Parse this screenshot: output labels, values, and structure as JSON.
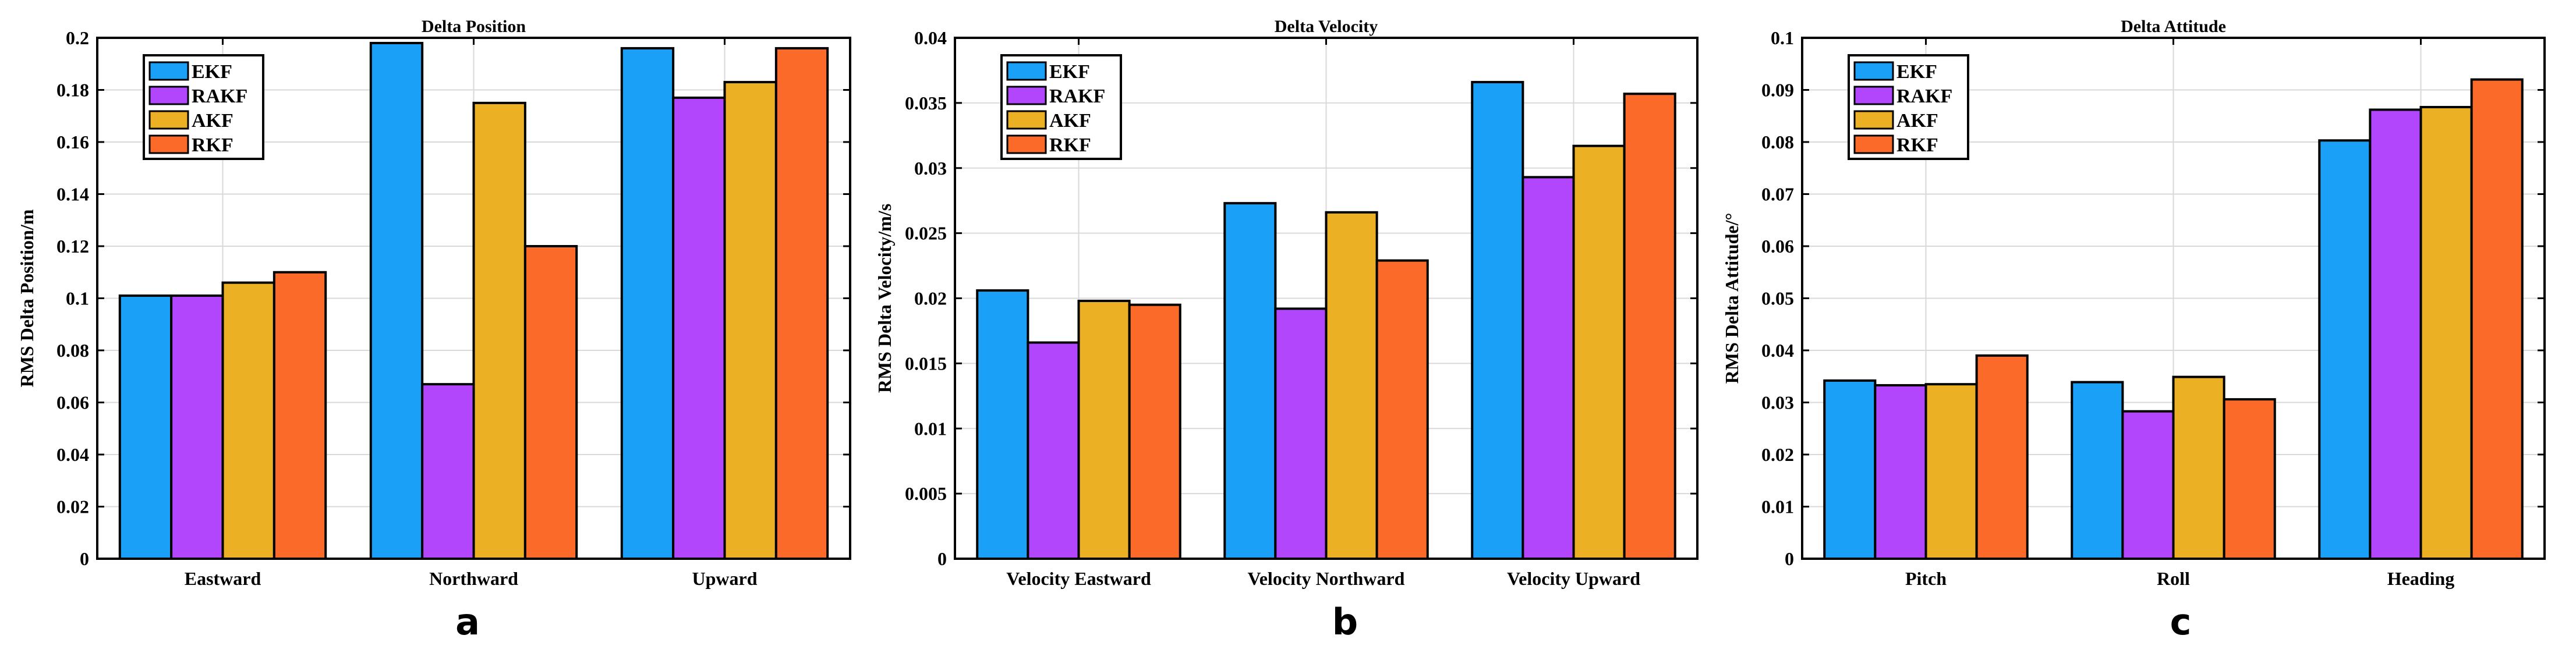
{
  "colors": {
    "EKF": "#1aa0f6",
    "RAKF": "#b146fc",
    "AKF": "#ecb025",
    "RKF": "#fc6a2a",
    "grid": "#d9d9d9",
    "axis": "#000000"
  },
  "chart_data": [
    {
      "type": "bar",
      "title": "Delta Position",
      "ylabel": "RMS Delta Position/m",
      "panel_label": "a",
      "categories": [
        "Eastward",
        "Northward",
        "Upward"
      ],
      "ylim": [
        0,
        0.2
      ],
      "yticks": [
        0,
        0.02,
        0.04,
        0.06,
        0.08,
        0.1,
        0.12,
        0.14,
        0.16,
        0.18,
        0.2
      ],
      "ytick_labels": [
        "0",
        "0.02",
        "0.04",
        "0.06",
        "0.08",
        "0.1",
        "0.12",
        "0.14",
        "0.16",
        "0.18",
        "0.2"
      ],
      "grid": true,
      "legend_position": "top-left",
      "series": [
        {
          "name": "EKF",
          "values": [
            0.101,
            0.198,
            0.196
          ]
        },
        {
          "name": "RAKF",
          "values": [
            0.101,
            0.067,
            0.177
          ]
        },
        {
          "name": "AKF",
          "values": [
            0.106,
            0.175,
            0.183
          ]
        },
        {
          "name": "RKF",
          "values": [
            0.11,
            0.12,
            0.196
          ]
        }
      ]
    },
    {
      "type": "bar",
      "title": "Delta Velocity",
      "ylabel": "RMS Delta Velocity/m/s",
      "panel_label": "b",
      "categories": [
        "Velocity Eastward",
        "Velocity Northward",
        "Velocity Upward"
      ],
      "ylim": [
        0,
        0.04
      ],
      "yticks": [
        0,
        0.005,
        0.01,
        0.015,
        0.02,
        0.025,
        0.03,
        0.035,
        0.04
      ],
      "ytick_labels": [
        "0",
        "0.005",
        "0.01",
        "0.015",
        "0.02",
        "0.025",
        "0.03",
        "0.035",
        "0.04"
      ],
      "grid": true,
      "legend_position": "top-left",
      "series": [
        {
          "name": "EKF",
          "values": [
            0.0206,
            0.0273,
            0.0366
          ]
        },
        {
          "name": "RAKF",
          "values": [
            0.0166,
            0.0192,
            0.0293
          ]
        },
        {
          "name": "AKF",
          "values": [
            0.0198,
            0.0266,
            0.0317
          ]
        },
        {
          "name": "RKF",
          "values": [
            0.0195,
            0.0229,
            0.0357
          ]
        }
      ]
    },
    {
      "type": "bar",
      "title": "Delta Attitude",
      "ylabel": "RMS Delta Attitude/°",
      "panel_label": "c",
      "categories": [
        "Pitch",
        "Roll",
        "Heading"
      ],
      "ylim": [
        0,
        0.1
      ],
      "yticks": [
        0,
        0.01,
        0.02,
        0.03,
        0.04,
        0.05,
        0.06,
        0.07,
        0.08,
        0.09,
        0.1
      ],
      "ytick_labels": [
        "0",
        "0.01",
        "0.02",
        "0.03",
        "0.04",
        "0.05",
        "0.06",
        "0.07",
        "0.08",
        "0.09",
        "0.1"
      ],
      "grid": true,
      "legend_position": "top-left",
      "series": [
        {
          "name": "EKF",
          "values": [
            0.0342,
            0.0339,
            0.0803
          ]
        },
        {
          "name": "RAKF",
          "values": [
            0.0333,
            0.0283,
            0.0862
          ]
        },
        {
          "name": "AKF",
          "values": [
            0.0335,
            0.0349,
            0.0867
          ]
        },
        {
          "name": "RKF",
          "values": [
            0.039,
            0.0306,
            0.092
          ]
        }
      ]
    }
  ]
}
